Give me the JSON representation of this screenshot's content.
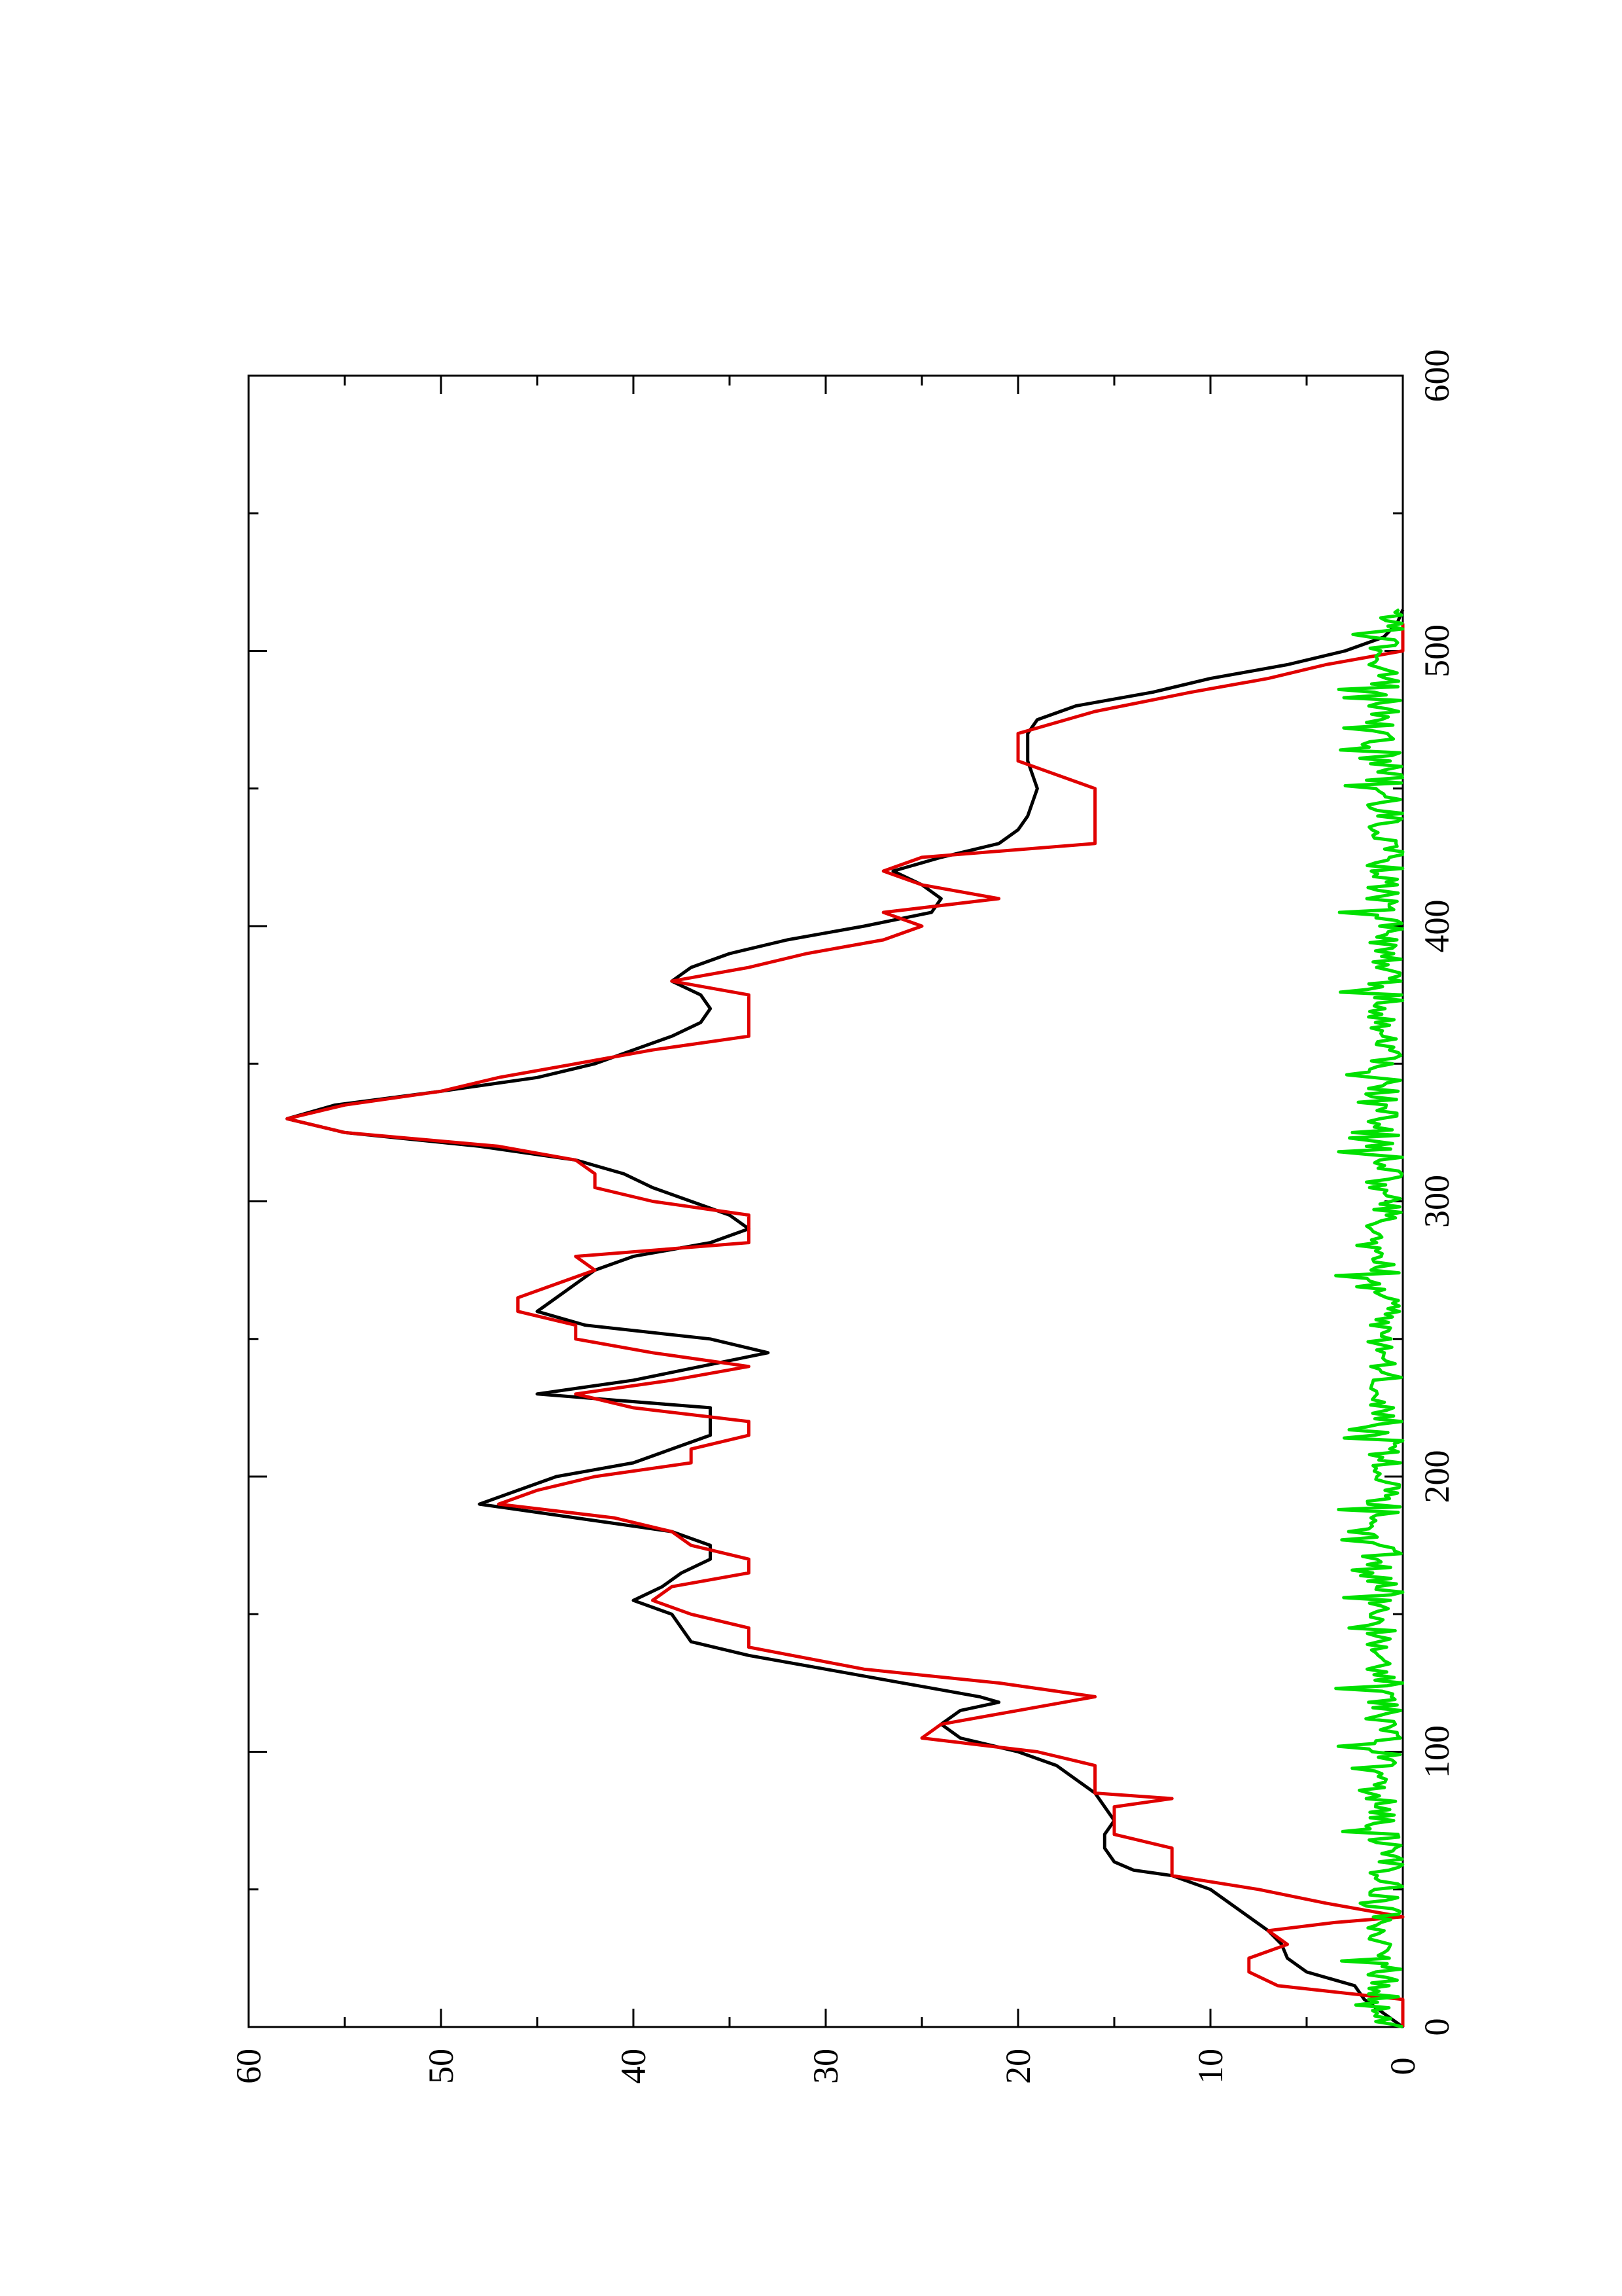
{
  "chart_data": {
    "type": "line",
    "title": "",
    "xlabel": "",
    "ylabel": "",
    "xlim": [
      0,
      600
    ],
    "ylim": [
      0,
      60
    ],
    "x_ticks": [
      "0",
      "100",
      "200",
      "300",
      "400",
      "500",
      "600"
    ],
    "y_ticks": [
      "0",
      "10",
      "20",
      "30",
      "40",
      "50",
      "60"
    ],
    "x_minor_step": 50,
    "y_minor_step": 5,
    "orientation": "rotated 90 degrees counter-clockwise",
    "grid": false,
    "legend": null,
    "series": [
      {
        "color": "#000000",
        "style": "smooth",
        "points": [
          [
            0,
            0
          ],
          [
            5,
            1
          ],
          [
            10,
            2
          ],
          [
            15,
            2.5
          ],
          [
            20,
            5
          ],
          [
            25,
            6
          ],
          [
            30,
            6.3
          ],
          [
            35,
            7
          ],
          [
            40,
            8
          ],
          [
            45,
            9
          ],
          [
            50,
            10
          ],
          [
            55,
            12
          ],
          [
            57,
            14
          ],
          [
            60,
            15
          ],
          [
            65,
            15.5
          ],
          [
            70,
            15.5
          ],
          [
            75,
            15
          ],
          [
            80,
            15.5
          ],
          [
            85,
            16
          ],
          [
            90,
            17
          ],
          [
            95,
            18
          ],
          [
            100,
            20
          ],
          [
            105,
            23
          ],
          [
            110,
            24
          ],
          [
            115,
            23
          ],
          [
            118,
            21
          ],
          [
            120,
            22
          ],
          [
            125,
            26
          ],
          [
            130,
            30
          ],
          [
            135,
            34
          ],
          [
            140,
            37
          ],
          [
            145,
            37.5
          ],
          [
            150,
            38
          ],
          [
            155,
            40
          ],
          [
            160,
            38.5
          ],
          [
            165,
            37.5
          ],
          [
            170,
            36
          ],
          [
            175,
            36
          ],
          [
            180,
            38
          ],
          [
            185,
            43
          ],
          [
            190,
            48
          ],
          [
            195,
            46
          ],
          [
            200,
            44
          ],
          [
            205,
            40
          ],
          [
            210,
            38
          ],
          [
            215,
            36
          ],
          [
            225,
            36
          ],
          [
            230,
            45
          ],
          [
            235,
            40
          ],
          [
            240,
            36.5
          ],
          [
            245,
            33
          ],
          [
            250,
            36
          ],
          [
            255,
            42.5
          ],
          [
            260,
            45
          ],
          [
            265,
            44
          ],
          [
            270,
            43
          ],
          [
            275,
            42
          ],
          [
            280,
            40
          ],
          [
            285,
            36
          ],
          [
            290,
            34
          ],
          [
            295,
            35
          ],
          [
            300,
            37
          ],
          [
            305,
            39
          ],
          [
            310,
            40.5
          ],
          [
            315,
            43
          ],
          [
            320,
            48
          ],
          [
            325,
            55
          ],
          [
            330,
            58
          ],
          [
            335,
            55.5
          ],
          [
            340,
            50
          ],
          [
            345,
            45
          ],
          [
            350,
            42
          ],
          [
            355,
            40
          ],
          [
            360,
            38
          ],
          [
            365,
            36.5
          ],
          [
            370,
            36
          ],
          [
            375,
            36.5
          ],
          [
            380,
            38
          ],
          [
            385,
            37
          ],
          [
            390,
            35
          ],
          [
            395,
            32
          ],
          [
            400,
            28
          ],
          [
            405,
            24.5
          ],
          [
            410,
            24
          ],
          [
            415,
            25
          ],
          [
            420,
            26.5
          ],
          [
            425,
            24
          ],
          [
            430,
            21
          ],
          [
            435,
            20
          ],
          [
            440,
            19.5
          ],
          [
            450,
            19
          ],
          [
            460,
            19.5
          ],
          [
            470,
            19.5
          ],
          [
            475,
            19
          ],
          [
            480,
            17
          ],
          [
            485,
            13
          ],
          [
            490,
            10
          ],
          [
            495,
            6
          ],
          [
            500,
            3
          ],
          [
            505,
            1
          ],
          [
            510,
            0.3
          ],
          [
            515,
            0
          ]
        ]
      },
      {
        "color": "#e00000",
        "style": "polyline",
        "points": [
          [
            0,
            0
          ],
          [
            10,
            0
          ],
          [
            15,
            6.5
          ],
          [
            20,
            8
          ],
          [
            25,
            8
          ],
          [
            30,
            6
          ],
          [
            35,
            7
          ],
          [
            38,
            3.5
          ],
          [
            40,
            0
          ],
          [
            45,
            4
          ],
          [
            50,
            7.5
          ],
          [
            55,
            12
          ],
          [
            60,
            12
          ],
          [
            65,
            12
          ],
          [
            70,
            15
          ],
          [
            75,
            15
          ],
          [
            80,
            15
          ],
          [
            83,
            12
          ],
          [
            85,
            16
          ],
          [
            90,
            16
          ],
          [
            95,
            16
          ],
          [
            100,
            19
          ],
          [
            105,
            25
          ],
          [
            110,
            24
          ],
          [
            115,
            20
          ],
          [
            120,
            16
          ],
          [
            125,
            21
          ],
          [
            130,
            28
          ],
          [
            138,
            34
          ],
          [
            145,
            34
          ],
          [
            150,
            37
          ],
          [
            155,
            39
          ],
          [
            160,
            38
          ],
          [
            165,
            34
          ],
          [
            170,
            34
          ],
          [
            175,
            37
          ],
          [
            180,
            38
          ],
          [
            185,
            41
          ],
          [
            190,
            47
          ],
          [
            195,
            45
          ],
          [
            200,
            42
          ],
          [
            205,
            37
          ],
          [
            210,
            37
          ],
          [
            215,
            34
          ],
          [
            220,
            34
          ],
          [
            225,
            40
          ],
          [
            230,
            43
          ],
          [
            235,
            38
          ],
          [
            240,
            34
          ],
          [
            245,
            39
          ],
          [
            250,
            43
          ],
          [
            255,
            43
          ],
          [
            260,
            46
          ],
          [
            265,
            46
          ],
          [
            270,
            44
          ],
          [
            275,
            42
          ],
          [
            280,
            43
          ],
          [
            285,
            34
          ],
          [
            290,
            34
          ],
          [
            295,
            34
          ],
          [
            300,
            39
          ],
          [
            305,
            42
          ],
          [
            310,
            42
          ],
          [
            315,
            43
          ],
          [
            320,
            47
          ],
          [
            325,
            55
          ],
          [
            330,
            58
          ],
          [
            335,
            55
          ],
          [
            340,
            50
          ],
          [
            345,
            47
          ],
          [
            350,
            43
          ],
          [
            355,
            39
          ],
          [
            360,
            34
          ],
          [
            365,
            34
          ],
          [
            370,
            34
          ],
          [
            375,
            34
          ],
          [
            380,
            38
          ],
          [
            385,
            34
          ],
          [
            390,
            31
          ],
          [
            395,
            27
          ],
          [
            400,
            25
          ],
          [
            405,
            27
          ],
          [
            410,
            21
          ],
          [
            415,
            25
          ],
          [
            420,
            27
          ],
          [
            425,
            25
          ],
          [
            430,
            16
          ],
          [
            440,
            16
          ],
          [
            450,
            16
          ],
          [
            460,
            20
          ],
          [
            470,
            20
          ],
          [
            478,
            16
          ],
          [
            485,
            11
          ],
          [
            490,
            7
          ],
          [
            495,
            4
          ],
          [
            500,
            0
          ],
          [
            510,
            0
          ]
        ]
      },
      {
        "color": "#00e000",
        "style": "noisy",
        "x_range": [
          0,
          515
        ],
        "y_range": [
          0,
          3.5
        ]
      }
    ]
  }
}
